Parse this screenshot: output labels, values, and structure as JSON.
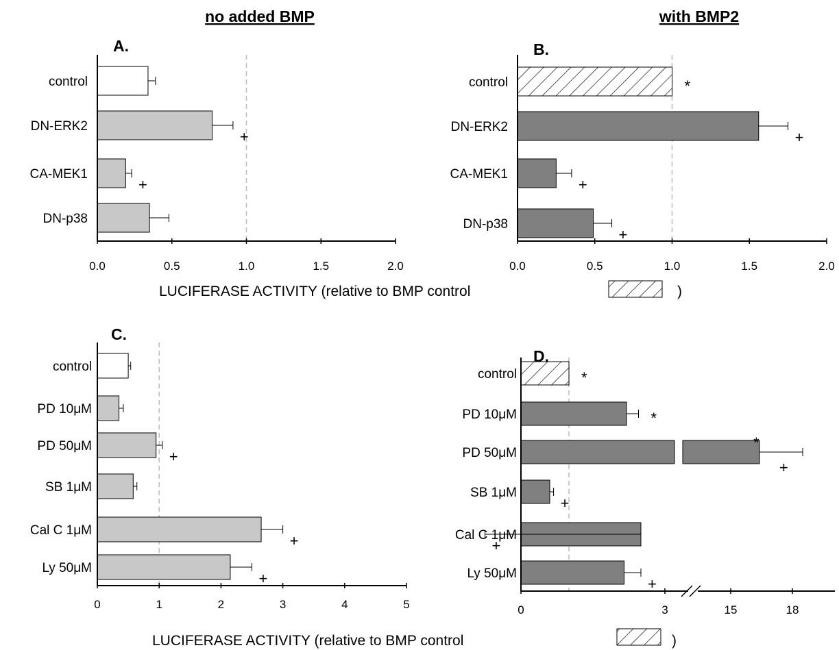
{
  "headings": {
    "left": "no added BMP",
    "right": "with BMP2"
  },
  "xlabel": {
    "prefix": "LUCIFERASE ACTIVITY (relative to BMP control",
    "suffix": ")"
  },
  "colors": {
    "light_bar": "#c8c8c8",
    "dark_bar": "#808080",
    "white_bar": "#ffffff",
    "reference_line": "#bbbbbb",
    "axis": "#000000"
  },
  "chart_data": [
    {
      "panel": "A.",
      "type": "bar",
      "orientation": "horizontal",
      "categories": [
        "control",
        "DN-ERK2",
        "CA-MEK1",
        "DN-p38"
      ],
      "values": [
        0.34,
        0.77,
        0.19,
        0.35
      ],
      "errors": [
        0.05,
        0.14,
        0.04,
        0.13
      ],
      "fills": [
        "white",
        "light",
        "light",
        "light"
      ],
      "markers": [
        "",
        "+",
        "+",
        ""
      ],
      "ticks": [
        "0.0",
        "0.5",
        "1.0",
        "1.5",
        "2.0"
      ],
      "xlim": [
        0,
        2
      ],
      "reference_line": 1.0
    },
    {
      "panel": "B.",
      "type": "bar",
      "orientation": "horizontal",
      "categories": [
        "control",
        "DN-ERK2",
        "CA-MEK1",
        "DN-p38"
      ],
      "values": [
        1.0,
        1.56,
        0.25,
        0.49
      ],
      "errors": [
        0.0,
        0.19,
        0.1,
        0.12
      ],
      "fills": [
        "hatch",
        "dark",
        "dark",
        "dark"
      ],
      "markers": [
        "*",
        "+",
        "+",
        "+"
      ],
      "ticks": [
        "0.0",
        "0.5",
        "1.0",
        "1.5",
        "2.0"
      ],
      "xlim": [
        0,
        2
      ],
      "reference_line": 1.0
    },
    {
      "panel": "C.",
      "type": "bar",
      "orientation": "horizontal",
      "categories": [
        "control",
        "PD 10μM",
        "PD 50μM",
        "SB 1μM",
        "Cal C 1μM",
        "Ly  50μM"
      ],
      "values": [
        0.5,
        0.35,
        0.95,
        0.58,
        2.65,
        2.15
      ],
      "errors": [
        0.04,
        0.07,
        0.1,
        0.06,
        0.35,
        0.35
      ],
      "fills": [
        "white",
        "light",
        "light",
        "light",
        "light",
        "light"
      ],
      "markers": [
        "",
        "",
        "+",
        "",
        "+",
        "+"
      ],
      "ticks": [
        "0",
        "1",
        "2",
        "3",
        "4",
        "5"
      ],
      "xlim": [
        0,
        5
      ],
      "reference_line": 1.0
    },
    {
      "panel": "D.",
      "type": "bar",
      "orientation": "horizontal",
      "broken_axis": "between 3 and 15",
      "categories": [
        "control",
        "PD 10μM",
        "PD 50μM",
        "SB 1μM",
        "Cal C 1μM",
        "Ly  50μM"
      ],
      "values": [
        1.0,
        2.2,
        16.4,
        0.6,
        2.5,
        2.15
      ],
      "errors": [
        0.0,
        0.25,
        2.1,
        0.08,
        0.55,
        0.35
      ],
      "fills": [
        "hatch",
        "dark",
        "dark",
        "dark",
        "dark",
        "dark"
      ],
      "markers": [
        "*",
        "*",
        "*+",
        "+",
        "+",
        "+"
      ],
      "ticks": [
        "0",
        "3",
        "15",
        "18"
      ],
      "xlim": [
        0,
        20
      ],
      "reference_line": 1.0
    }
  ]
}
